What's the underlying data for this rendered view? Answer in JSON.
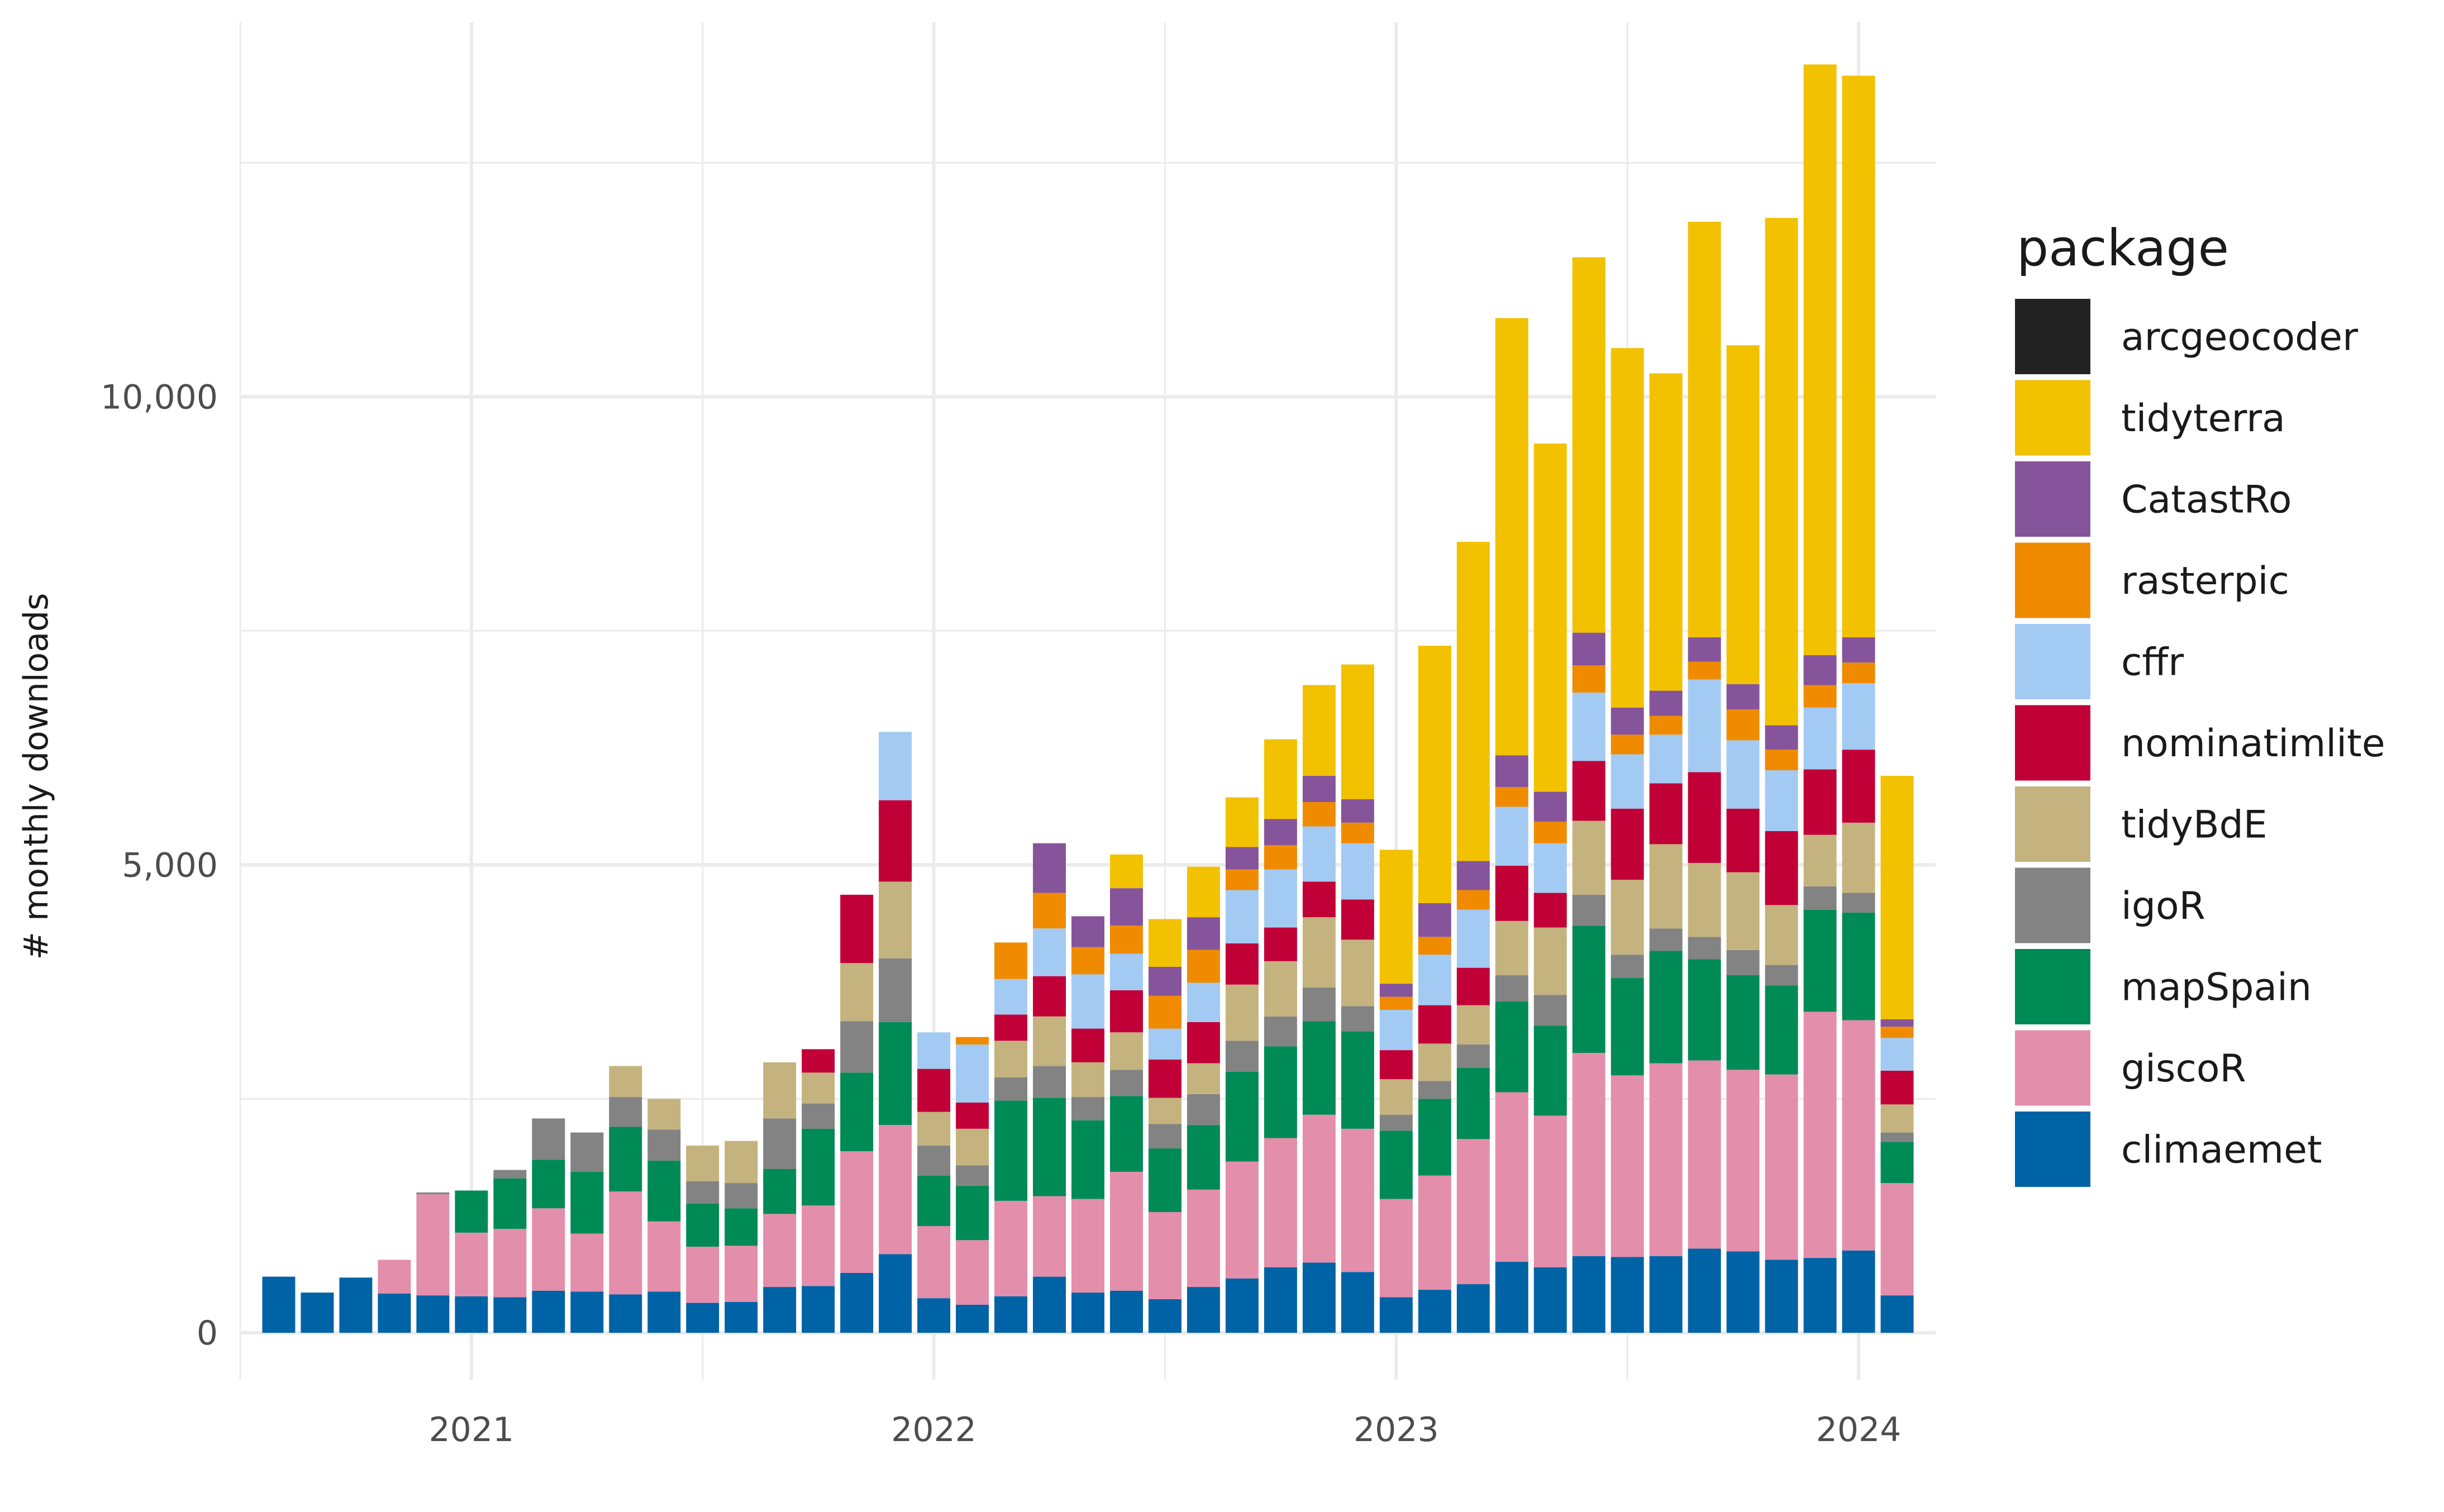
{
  "chart_data": {
    "type": "bar",
    "stacked": true,
    "title": "",
    "xlabel": "",
    "ylabel": "# monthly downloads",
    "x_tick_labels": [
      "2021",
      "2022",
      "2023",
      "2024"
    ],
    "y_tick_labels": [
      "0",
      "5,000",
      "10,000"
    ],
    "y_ticks": [
      0,
      5000,
      10000
    ],
    "ylim": [
      -500,
      14000
    ],
    "xlim": [
      "2020-07-01",
      "2024-03-01"
    ],
    "grid": true,
    "legend_position": "right",
    "legend_title": "package",
    "months": [
      "2020-08",
      "2020-09",
      "2020-10",
      "2020-11",
      "2020-12",
      "2021-01",
      "2021-02",
      "2021-03",
      "2021-04",
      "2021-05",
      "2021-06",
      "2021-07",
      "2021-08",
      "2021-09",
      "2021-10",
      "2021-11",
      "2021-12",
      "2022-01",
      "2022-02",
      "2022-03",
      "2022-04",
      "2022-05",
      "2022-06",
      "2022-07",
      "2022-08",
      "2022-09",
      "2022-10",
      "2022-11",
      "2022-12",
      "2023-01",
      "2023-02",
      "2023-03",
      "2023-04",
      "2023-05",
      "2023-06",
      "2023-07",
      "2023-08",
      "2023-09",
      "2023-10",
      "2023-11",
      "2023-12",
      "2024-01",
      "2024-02"
    ],
    "series": [
      {
        "name": "climaemet",
        "color": "#0063a6",
        "values": [
          600,
          430,
          590,
          420,
          400,
          390,
          380,
          450,
          440,
          410,
          440,
          320,
          330,
          490,
          500,
          640,
          840,
          370,
          300,
          390,
          600,
          430,
          450,
          360,
          490,
          580,
          700,
          750,
          650,
          380,
          460,
          520,
          760,
          700,
          820,
          810,
          820,
          900,
          870,
          780,
          800,
          880,
          400
        ]
      },
      {
        "name": "giscoR",
        "color": "#e38eab",
        "values": [
          0,
          0,
          0,
          360,
          1080,
          680,
          730,
          880,
          620,
          1100,
          750,
          600,
          600,
          780,
          860,
          1300,
          1380,
          770,
          690,
          1020,
          860,
          1000,
          1270,
          930,
          1040,
          1250,
          1380,
          1580,
          1530,
          1050,
          1220,
          1550,
          1810,
          1620,
          2170,
          1940,
          2060,
          2010,
          1940,
          1980,
          2630,
          2460,
          1200
        ]
      },
      {
        "name": "mapSpain",
        "color": "#008a56",
        "values": [
          0,
          0,
          0,
          0,
          0,
          450,
          540,
          520,
          660,
          690,
          650,
          460,
          400,
          480,
          820,
          840,
          1100,
          540,
          580,
          1070,
          1050,
          840,
          810,
          680,
          690,
          960,
          980,
          1000,
          1040,
          730,
          820,
          760,
          970,
          960,
          1360,
          1040,
          1200,
          1080,
          1010,
          950,
          1090,
          1150,
          440
        ]
      },
      {
        "name": "igoR",
        "color": "#838383",
        "values": [
          0,
          0,
          0,
          0,
          20,
          0,
          90,
          440,
          420,
          320,
          330,
          240,
          270,
          540,
          270,
          550,
          680,
          320,
          220,
          250,
          340,
          250,
          280,
          260,
          330,
          330,
          320,
          360,
          270,
          170,
          190,
          250,
          280,
          330,
          330,
          250,
          240,
          240,
          270,
          220,
          250,
          210,
          100
        ]
      },
      {
        "name": "tidyBdE",
        "color": "#c4b37e",
        "values": [
          0,
          0,
          0,
          0,
          0,
          0,
          0,
          0,
          0,
          330,
          330,
          380,
          450,
          600,
          330,
          620,
          820,
          360,
          390,
          390,
          530,
          370,
          400,
          280,
          330,
          600,
          590,
          750,
          710,
          380,
          400,
          420,
          580,
          720,
          790,
          800,
          900,
          790,
          830,
          640,
          550,
          750,
          300
        ]
      },
      {
        "name": "nominatimlite",
        "color": "#c10037",
        "values": [
          0,
          0,
          0,
          0,
          0,
          0,
          0,
          0,
          0,
          0,
          0,
          0,
          0,
          0,
          250,
          730,
          870,
          460,
          280,
          280,
          430,
          360,
          450,
          410,
          440,
          440,
          360,
          380,
          430,
          310,
          410,
          400,
          590,
          370,
          640,
          760,
          650,
          970,
          680,
          790,
          700,
          780,
          360
        ]
      },
      {
        "name": "cffr",
        "color": "#a3caf2",
        "values": [
          0,
          0,
          0,
          0,
          0,
          0,
          0,
          0,
          0,
          0,
          0,
          0,
          0,
          0,
          0,
          0,
          730,
          390,
          620,
          380,
          510,
          580,
          390,
          330,
          420,
          570,
          620,
          590,
          600,
          430,
          540,
          620,
          630,
          530,
          730,
          580,
          520,
          990,
          730,
          650,
          660,
          710,
          350
        ]
      },
      {
        "name": "rasterpic",
        "color": "#f08b00",
        "values": [
          0,
          0,
          0,
          0,
          0,
          0,
          0,
          0,
          0,
          0,
          0,
          0,
          0,
          0,
          0,
          0,
          0,
          0,
          80,
          390,
          380,
          290,
          300,
          350,
          350,
          220,
          260,
          260,
          220,
          140,
          190,
          210,
          210,
          230,
          290,
          210,
          200,
          190,
          330,
          220,
          240,
          220,
          120
        ]
      },
      {
        "name": "CatastRo",
        "color": "#86549a",
        "values": [
          0,
          0,
          0,
          0,
          0,
          0,
          0,
          0,
          0,
          0,
          0,
          0,
          0,
          0,
          0,
          0,
          0,
          0,
          0,
          0,
          530,
          330,
          400,
          310,
          350,
          240,
          280,
          280,
          250,
          140,
          360,
          310,
          340,
          320,
          350,
          290,
          270,
          260,
          270,
          260,
          320,
          270,
          80
        ]
      },
      {
        "name": "tidyterra",
        "color": "#f2c100",
        "values": [
          0,
          0,
          0,
          0,
          0,
          0,
          0,
          0,
          0,
          0,
          0,
          0,
          0,
          0,
          0,
          0,
          0,
          0,
          0,
          0,
          0,
          0,
          360,
          510,
          540,
          530,
          850,
          970,
          1440,
          1430,
          2750,
          3410,
          4670,
          3720,
          4010,
          3840,
          3390,
          4440,
          3620,
          5420,
          6310,
          6000,
          2600
        ]
      },
      {
        "name": "arcgeocoder",
        "color": "#232323",
        "values": [
          0,
          0,
          0,
          0,
          0,
          0,
          0,
          0,
          0,
          0,
          0,
          0,
          0,
          0,
          0,
          0,
          0,
          0,
          0,
          0,
          0,
          0,
          0,
          0,
          0,
          0,
          0,
          0,
          0,
          0,
          0,
          0,
          0,
          0,
          0,
          0,
          0,
          0,
          0,
          0,
          0,
          0,
          0
        ]
      }
    ]
  }
}
